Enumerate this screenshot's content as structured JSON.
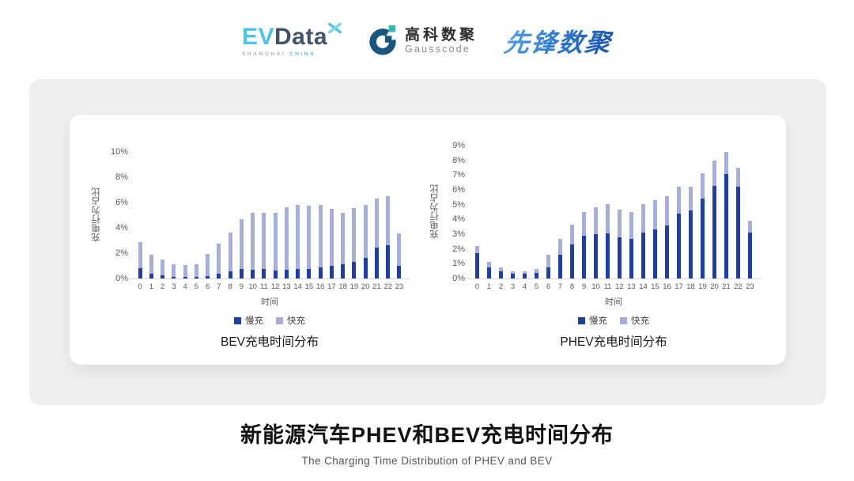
{
  "header": {
    "evdata": {
      "ev": "EV",
      "data": "Data",
      "sub_left": "SHANGHAI",
      "sub_right": "CHINA"
    },
    "gausscode": {
      "cn": "高科数聚",
      "en": "Gausscode"
    },
    "pioneer": {
      "cn": "先锋数聚"
    }
  },
  "colors": {
    "slow_charge": "#1E40A6",
    "fast_charge": "#A6AEDC",
    "panel_bg": "#EFEFEF",
    "axis_text": "#595959",
    "evdata_cyan": "#4EC3E9",
    "evdata_slate": "#44536A",
    "gauss_navy": "#19567D",
    "gauss_teal": "#2FBCB4",
    "pioneer_blue": "#2F7BD0"
  },
  "chart_data": [
    {
      "type": "bar",
      "stacked": true,
      "title": "BEV充电时间分布",
      "xlabel": "时间",
      "ylabel": "充电行为占比",
      "ylim": [
        0,
        10
      ],
      "ytick_step": 2,
      "ytick_suffix": "%",
      "grid": false,
      "legend_position": "bottom",
      "categories": [
        "0",
        "1",
        "2",
        "3",
        "4",
        "5",
        "6",
        "7",
        "8",
        "9",
        "10",
        "11",
        "12",
        "13",
        "14",
        "15",
        "16",
        "17",
        "18",
        "19",
        "20",
        "21",
        "22",
        "23"
      ],
      "series": [
        {
          "name": "慢充",
          "color": "#1E40A6",
          "values": [
            0.8,
            0.4,
            0.25,
            0.15,
            0.15,
            0.15,
            0.2,
            0.35,
            0.55,
            0.75,
            0.7,
            0.75,
            0.65,
            0.7,
            0.75,
            0.75,
            0.9,
            1.0,
            1.1,
            1.3,
            1.6,
            2.45,
            2.65,
            1.0
          ]
        },
        {
          "name": "快充",
          "color": "#A6AEDC",
          "values": [
            2.05,
            1.45,
            1.25,
            1.0,
            0.9,
            1.0,
            1.75,
            2.4,
            3.05,
            3.95,
            4.5,
            4.45,
            4.55,
            4.9,
            5.05,
            5.0,
            4.9,
            4.5,
            4.1,
            4.25,
            4.2,
            3.85,
            3.85,
            2.55
          ]
        }
      ]
    },
    {
      "type": "bar",
      "stacked": true,
      "title": "PHEV充电时间分布",
      "xlabel": "时间",
      "ylabel": "充电行为占比",
      "ylim": [
        0,
        9
      ],
      "ytick_step": 1,
      "ytick_suffix": "%",
      "grid": false,
      "legend_position": "bottom",
      "categories": [
        "0",
        "1",
        "2",
        "3",
        "4",
        "5",
        "6",
        "7",
        "8",
        "9",
        "10",
        "11",
        "12",
        "13",
        "14",
        "15",
        "16",
        "17",
        "18",
        "19",
        "20",
        "21",
        "22",
        "23"
      ],
      "series": [
        {
          "name": "慢充",
          "color": "#1E40A6",
          "values": [
            1.7,
            0.75,
            0.5,
            0.3,
            0.3,
            0.35,
            0.75,
            1.6,
            2.3,
            2.9,
            3.0,
            3.05,
            2.8,
            2.7,
            3.1,
            3.3,
            3.6,
            4.4,
            4.6,
            5.4,
            6.25,
            7.05,
            6.2,
            3.1
          ]
        },
        {
          "name": "快充",
          "color": "#A6AEDC",
          "values": [
            0.5,
            0.4,
            0.25,
            0.2,
            0.2,
            0.3,
            0.85,
            1.1,
            1.35,
            1.6,
            1.8,
            2.0,
            1.85,
            1.8,
            1.95,
            2.0,
            1.95,
            1.8,
            1.6,
            1.75,
            1.75,
            1.5,
            1.3,
            0.8
          ]
        }
      ]
    }
  ],
  "footer": {
    "title": "新能源汽车PHEV和BEV充电时间分布",
    "subtitle": "The Charging Time Distribution of PHEV and BEV"
  }
}
